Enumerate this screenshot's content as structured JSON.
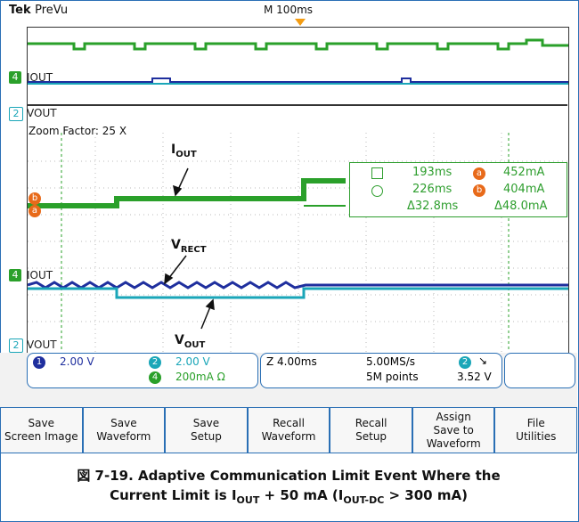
{
  "header": {
    "brand": "Tek",
    "mode": "PreVu",
    "timebase": "M 100ms"
  },
  "channels": {
    "ch4_label": "IOUT",
    "ch2_label": "VOUT",
    "ch4_label_zoom": "IOUT",
    "ch2_label_zoom": "VOUT",
    "ch4_num": "4",
    "ch2_num": "2"
  },
  "zoom": {
    "label": "Zoom Factor: 25 X"
  },
  "cursors": {
    "t1": "193ms",
    "t2": "226ms",
    "dt": "Δ32.8ms",
    "a_val": "452mA",
    "b_val": "404mA",
    "dv": "Δ48.0mA",
    "marker_a": "a",
    "marker_b": "b"
  },
  "annotations": {
    "iout_main": "I",
    "iout_sub": "OUT",
    "vrect_main": "V",
    "vrect_sub": "RECT",
    "vout_main": "V",
    "vout_sub": "OUT"
  },
  "status": {
    "ch1_num": "1",
    "ch1_scale": "2.00 V",
    "ch2_num": "2",
    "ch2_scale": "2.00 V",
    "ch4_num": "4",
    "ch4_scale": "200mA Ω",
    "zoom_time": "Z 4.00ms",
    "sample_rate": "5.00MS/s",
    "points": "5M points",
    "trig_ch": "2",
    "trig_level": "3.52 V"
  },
  "buttons": [
    "Save\nScreen Image",
    "Save\nWaveform",
    "Save\nSetup",
    "Recall\nWaveform",
    "Recall\nSetup",
    "Assign\nSave to\nWaveform",
    "File\nUtilities"
  ],
  "caption": {
    "line1": "図 7-19. Adaptive Communication Limit Event Where the",
    "line2a": "Current Limit is I",
    "line2b": "OUT",
    "line2c": " + 50 mA (I",
    "line2d": "OUT-DC",
    "line2e": " > 300 mA)"
  },
  "colors": {
    "green": "#2aa02a",
    "blue": "#1f2f9e",
    "cyan": "#1aa6b8",
    "orange": "#e86a1a",
    "frame": "#2a6fb5"
  }
}
